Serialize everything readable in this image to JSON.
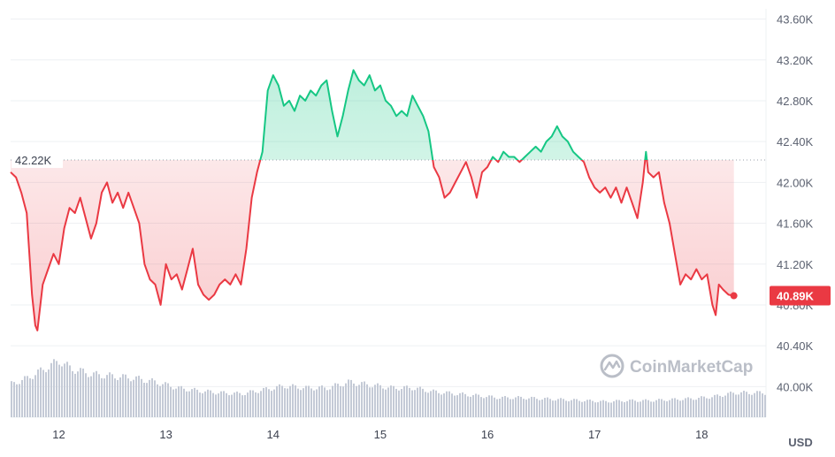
{
  "chart_data": {
    "type": "area",
    "x_ticks": [
      "12",
      "13",
      "14",
      "15",
      "16",
      "17",
      "18"
    ],
    "y_ticks": [
      "43.60K",
      "43.20K",
      "42.80K",
      "42.40K",
      "42.00K",
      "41.60K",
      "41.20K",
      "40.80K",
      "40.40K",
      "40.00K"
    ],
    "ylim": [
      39700,
      43700
    ],
    "xlim": [
      11.55,
      18.6
    ],
    "unit": "USD",
    "reference": {
      "value": 42220,
      "label": "42.22K"
    },
    "current": {
      "value": 40890,
      "label": "40.89K"
    },
    "colors": {
      "above": "#16c784",
      "below": "#ea3943",
      "volume": "#c4cad6",
      "grid": "#eef0f3"
    },
    "watermark": "CoinMarketCap",
    "watermark_icon": "coinmarketcap-logo-icon",
    "price_series": [
      [
        11.55,
        42100
      ],
      [
        11.6,
        42050
      ],
      [
        11.65,
        41900
      ],
      [
        11.7,
        41700
      ],
      [
        11.75,
        40900
      ],
      [
        11.78,
        40600
      ],
      [
        11.8,
        40550
      ],
      [
        11.85,
        41000
      ],
      [
        11.9,
        41150
      ],
      [
        11.95,
        41300
      ],
      [
        12.0,
        41200
      ],
      [
        12.05,
        41550
      ],
      [
        12.1,
        41750
      ],
      [
        12.15,
        41700
      ],
      [
        12.2,
        41850
      ],
      [
        12.25,
        41650
      ],
      [
        12.3,
        41450
      ],
      [
        12.35,
        41600
      ],
      [
        12.4,
        41900
      ],
      [
        12.45,
        42000
      ],
      [
        12.5,
        41800
      ],
      [
        12.55,
        41900
      ],
      [
        12.6,
        41750
      ],
      [
        12.65,
        41900
      ],
      [
        12.7,
        41750
      ],
      [
        12.75,
        41600
      ],
      [
        12.8,
        41200
      ],
      [
        12.85,
        41050
      ],
      [
        12.9,
        41000
      ],
      [
        12.95,
        40800
      ],
      [
        13.0,
        41200
      ],
      [
        13.05,
        41050
      ],
      [
        13.1,
        41100
      ],
      [
        13.15,
        40950
      ],
      [
        13.2,
        41150
      ],
      [
        13.25,
        41350
      ],
      [
        13.3,
        41000
      ],
      [
        13.35,
        40900
      ],
      [
        13.4,
        40850
      ],
      [
        13.45,
        40900
      ],
      [
        13.5,
        41000
      ],
      [
        13.55,
        41050
      ],
      [
        13.6,
        41000
      ],
      [
        13.65,
        41100
      ],
      [
        13.7,
        41000
      ],
      [
        13.75,
        41350
      ],
      [
        13.8,
        41850
      ],
      [
        13.85,
        42100
      ],
      [
        13.9,
        42300
      ],
      [
        13.95,
        42900
      ],
      [
        14.0,
        43050
      ],
      [
        14.05,
        42950
      ],
      [
        14.1,
        42750
      ],
      [
        14.15,
        42800
      ],
      [
        14.2,
        42700
      ],
      [
        14.25,
        42850
      ],
      [
        14.3,
        42800
      ],
      [
        14.35,
        42900
      ],
      [
        14.4,
        42850
      ],
      [
        14.45,
        42950
      ],
      [
        14.5,
        43000
      ],
      [
        14.55,
        42700
      ],
      [
        14.6,
        42450
      ],
      [
        14.65,
        42650
      ],
      [
        14.7,
        42900
      ],
      [
        14.75,
        43100
      ],
      [
        14.8,
        43000
      ],
      [
        14.85,
        42950
      ],
      [
        14.9,
        43050
      ],
      [
        14.95,
        42900
      ],
      [
        15.0,
        42950
      ],
      [
        15.05,
        42800
      ],
      [
        15.1,
        42750
      ],
      [
        15.15,
        42650
      ],
      [
        15.2,
        42700
      ],
      [
        15.25,
        42650
      ],
      [
        15.3,
        42850
      ],
      [
        15.35,
        42750
      ],
      [
        15.4,
        42650
      ],
      [
        15.45,
        42500
      ],
      [
        15.5,
        42150
      ],
      [
        15.55,
        42050
      ],
      [
        15.6,
        41850
      ],
      [
        15.65,
        41900
      ],
      [
        15.7,
        42000
      ],
      [
        15.75,
        42100
      ],
      [
        15.8,
        42200
      ],
      [
        15.85,
        42050
      ],
      [
        15.9,
        41850
      ],
      [
        15.95,
        42100
      ],
      [
        16.0,
        42150
      ],
      [
        16.05,
        42250
      ],
      [
        16.1,
        42200
      ],
      [
        16.15,
        42300
      ],
      [
        16.2,
        42250
      ],
      [
        16.25,
        42250
      ],
      [
        16.3,
        42200
      ],
      [
        16.35,
        42250
      ],
      [
        16.4,
        42300
      ],
      [
        16.45,
        42350
      ],
      [
        16.5,
        42300
      ],
      [
        16.55,
        42400
      ],
      [
        16.6,
        42450
      ],
      [
        16.65,
        42550
      ],
      [
        16.7,
        42450
      ],
      [
        16.75,
        42400
      ],
      [
        16.8,
        42300
      ],
      [
        16.85,
        42250
      ],
      [
        16.9,
        42200
      ],
      [
        16.95,
        42050
      ],
      [
        17.0,
        41950
      ],
      [
        17.05,
        41900
      ],
      [
        17.1,
        41950
      ],
      [
        17.15,
        41850
      ],
      [
        17.2,
        41950
      ],
      [
        17.25,
        41800
      ],
      [
        17.3,
        41950
      ],
      [
        17.35,
        41800
      ],
      [
        17.4,
        41650
      ],
      [
        17.45,
        42000
      ],
      [
        17.48,
        42300
      ],
      [
        17.5,
        42100
      ],
      [
        17.55,
        42050
      ],
      [
        17.6,
        42100
      ],
      [
        17.65,
        41800
      ],
      [
        17.7,
        41600
      ],
      [
        17.75,
        41300
      ],
      [
        17.8,
        41000
      ],
      [
        17.85,
        41100
      ],
      [
        17.9,
        41050
      ],
      [
        17.95,
        41150
      ],
      [
        18.0,
        41050
      ],
      [
        18.05,
        41100
      ],
      [
        18.1,
        40800
      ],
      [
        18.13,
        40700
      ],
      [
        18.16,
        41000
      ],
      [
        18.2,
        40950
      ],
      [
        18.25,
        40900
      ],
      [
        18.3,
        40890
      ]
    ],
    "volume_series": [
      [
        11.55,
        0.34
      ],
      [
        11.7,
        0.4
      ],
      [
        11.8,
        0.46
      ],
      [
        11.9,
        0.52
      ],
      [
        12.0,
        0.58
      ],
      [
        12.1,
        0.5
      ],
      [
        12.3,
        0.44
      ],
      [
        12.5,
        0.42
      ],
      [
        12.7,
        0.4
      ],
      [
        12.9,
        0.36
      ],
      [
        13.1,
        0.3
      ],
      [
        13.3,
        0.27
      ],
      [
        13.5,
        0.25
      ],
      [
        13.7,
        0.24
      ],
      [
        13.9,
        0.28
      ],
      [
        14.1,
        0.32
      ],
      [
        14.3,
        0.3
      ],
      [
        14.5,
        0.3
      ],
      [
        14.7,
        0.36
      ],
      [
        14.9,
        0.33
      ],
      [
        15.1,
        0.3
      ],
      [
        15.3,
        0.3
      ],
      [
        15.5,
        0.26
      ],
      [
        15.7,
        0.24
      ],
      [
        15.9,
        0.22
      ],
      [
        16.1,
        0.2
      ],
      [
        16.3,
        0.2
      ],
      [
        16.5,
        0.19
      ],
      [
        16.7,
        0.18
      ],
      [
        16.9,
        0.17
      ],
      [
        17.1,
        0.16
      ],
      [
        17.3,
        0.17
      ],
      [
        17.5,
        0.17
      ],
      [
        17.7,
        0.18
      ],
      [
        17.9,
        0.19
      ],
      [
        18.1,
        0.21
      ],
      [
        18.3,
        0.25
      ]
    ]
  }
}
